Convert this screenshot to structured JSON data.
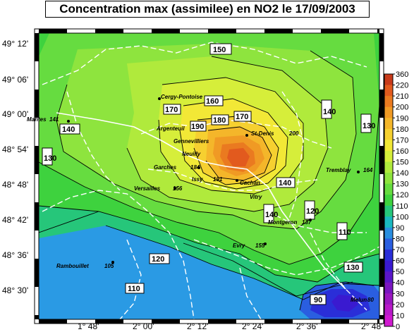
{
  "title": "Concentration max (assimilee) en NO2 le 17/09/2003",
  "y_axis_ticks": [
    "49° 12'",
    "49° 06'",
    "49° 00'",
    "48° 54'",
    "48° 48'",
    "48° 42'",
    "48° 36'",
    "48° 30'"
  ],
  "x_axis_ticks": [
    "1° 48'",
    "2° 00'",
    "2° 12'",
    "2° 24'",
    "2° 36'",
    "2° 48'"
  ],
  "colorbar": {
    "labels": [
      "360",
      "220",
      "210",
      "200",
      "190",
      "180",
      "170",
      "160",
      "150",
      "140",
      "130",
      "120",
      "110",
      "100",
      "90",
      "80",
      "70",
      "60",
      "50",
      "40",
      "30",
      "20",
      "10",
      "0"
    ],
    "colors": {
      "c360": "#c83a1a",
      "c220": "#e25a1e",
      "c210": "#ea7a20",
      "c200": "#f09a24",
      "c190": "#f4b62a",
      "c180": "#f6d030",
      "c170": "#f2e836",
      "c160": "#d6ee3a",
      "c150": "#b0ea3c",
      "c140": "#8ee43e",
      "c130": "#66dc40",
      "c120": "#3ed23e",
      "c110": "#26c67a",
      "c100": "#1ab8c0",
      "c90": "#2a8ee0",
      "c80": "#2a5ee0",
      "c70": "#2a2ed8",
      "c60": "#3a1ad0",
      "c50": "#5a16c8",
      "c40": "#7a16c0",
      "c30": "#9a18c0",
      "c20": "#b81ac8",
      "c10": "#d01ad0",
      "c0": "#e41ee0"
    }
  },
  "isoline_labels": [
    "150",
    "160",
    "170",
    "170",
    "180",
    "190",
    "140",
    "140",
    "130",
    "130",
    "120",
    "120",
    "110",
    "110",
    "130",
    "140",
    "140",
    "90"
  ],
  "cities": [
    {
      "name": "Cergy-Pontoise",
      "value": ""
    },
    {
      "name": "Mantes",
      "value": "141"
    },
    {
      "name": "Argenteuil",
      "value": ""
    },
    {
      "name": "Gennevilliers",
      "value": ""
    },
    {
      "name": "Neuilly",
      "value": ""
    },
    {
      "name": "St-Denis",
      "value": "200"
    },
    {
      "name": "Tremblay",
      "value": "164"
    },
    {
      "name": "Garches",
      "value": "184"
    },
    {
      "name": "Versailles",
      "value": "156"
    },
    {
      "name": "Issy",
      "value": "191"
    },
    {
      "name": "Cachan",
      "value": ""
    },
    {
      "name": "Vitry",
      "value": ""
    },
    {
      "name": "Montgeron",
      "value": "137"
    },
    {
      "name": "Evry",
      "value": "155"
    },
    {
      "name": "Rambouillet",
      "value": "105"
    },
    {
      "name": "Melun",
      "value": "80"
    }
  ]
}
